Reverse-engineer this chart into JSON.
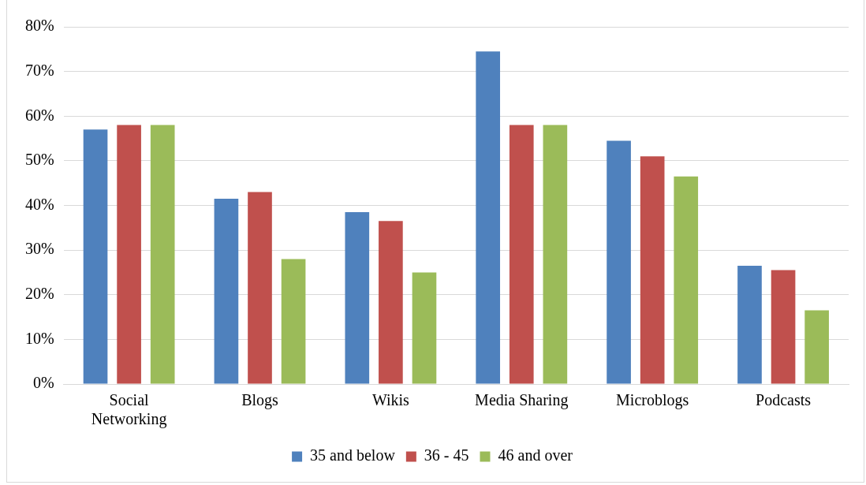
{
  "chart_data": {
    "type": "bar",
    "categories": [
      "Social Networking",
      "Blogs",
      "Wikis",
      "Media Sharing",
      "Microblogs",
      "Podcasts"
    ],
    "series": [
      {
        "name": "35 and below",
        "color": "#4f81bd",
        "values": [
          57,
          41.5,
          38.5,
          74.5,
          54.5,
          26.5
        ]
      },
      {
        "name": "36 - 45",
        "color": "#c0504d",
        "values": [
          58,
          43,
          36.5,
          58,
          51,
          25.5
        ]
      },
      {
        "name": "46 and over",
        "color": "#9bbb59",
        "values": [
          58,
          28,
          25,
          58,
          46.5,
          16.5
        ]
      }
    ],
    "ylim": [
      0,
      80
    ],
    "yticks": [
      {
        "value": 0,
        "label": "0%"
      },
      {
        "value": 10,
        "label": "10%"
      },
      {
        "value": 20,
        "label": "20%"
      },
      {
        "value": 30,
        "label": "30%"
      },
      {
        "value": 40,
        "label": "40%"
      },
      {
        "value": 50,
        "label": "50%"
      },
      {
        "value": 60,
        "label": "60%"
      },
      {
        "value": 70,
        "label": "70%"
      },
      {
        "value": 80,
        "label": "80%"
      }
    ],
    "grid": "y",
    "legend": "bottom"
  }
}
